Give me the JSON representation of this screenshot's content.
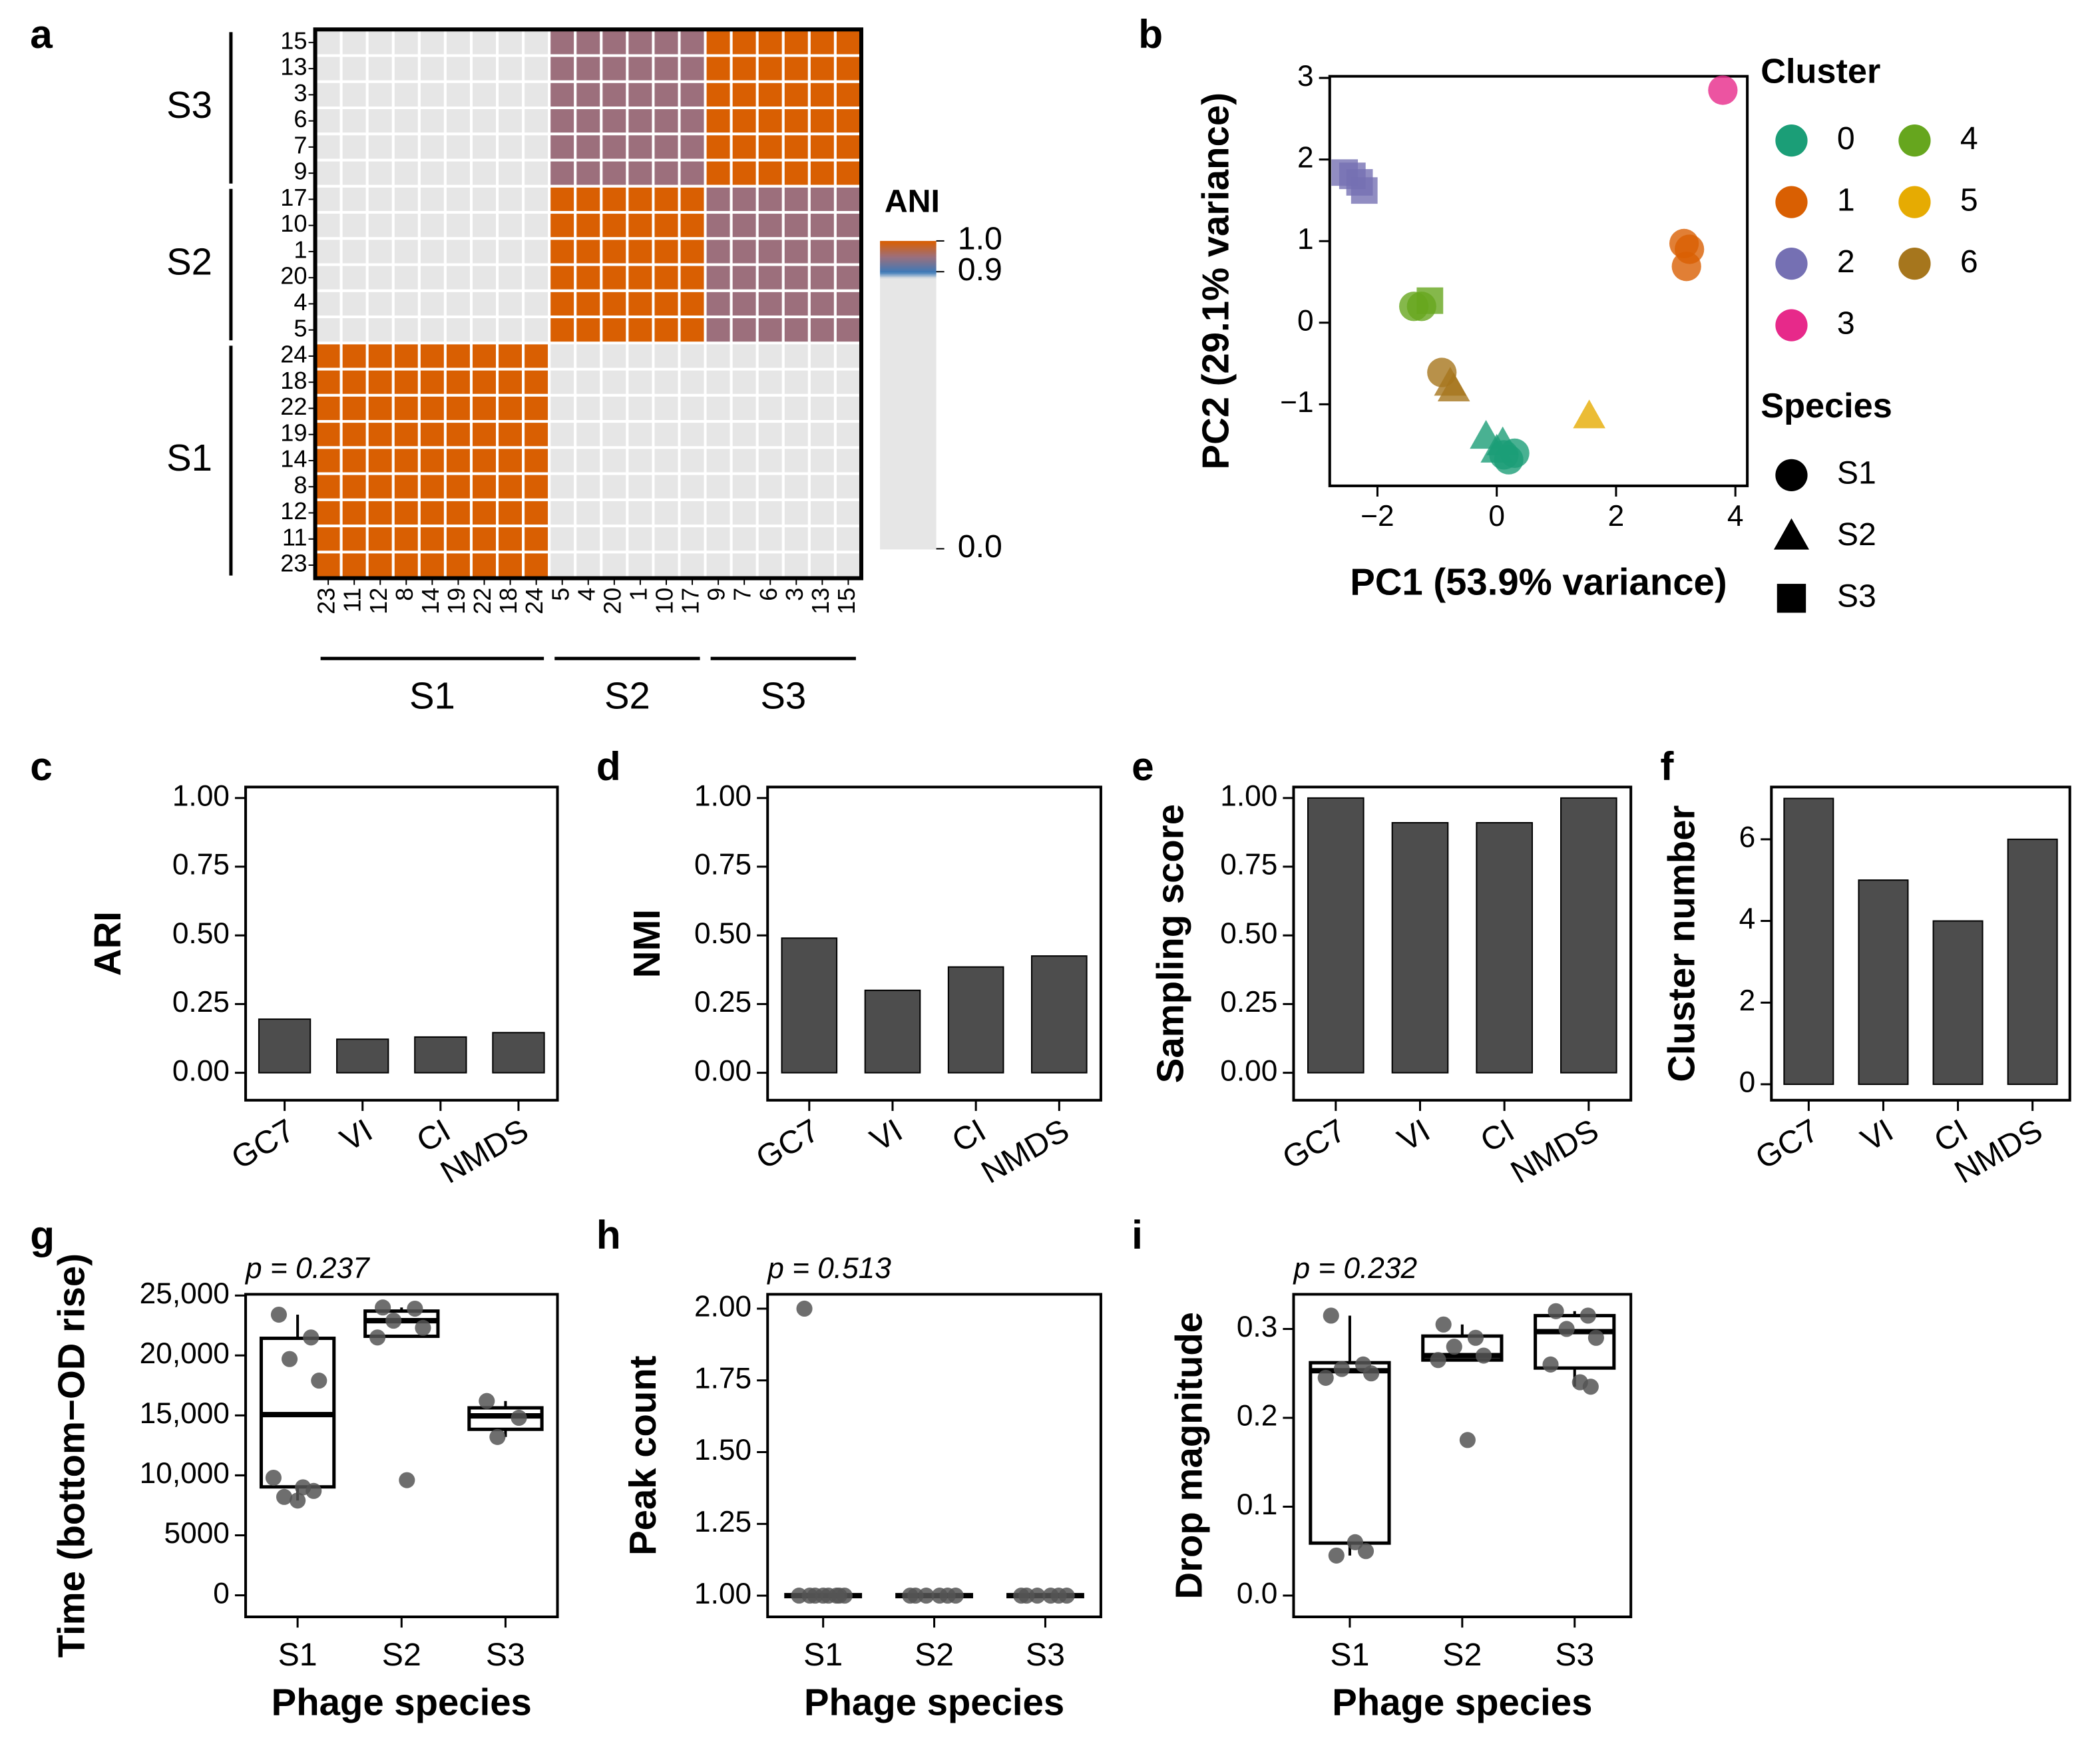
{
  "chart_data": [
    {
      "type": "heatmap",
      "panel": "a",
      "row_groups": [
        {
          "name": "S3",
          "labels": [
            "15",
            "13",
            "3",
            "6",
            "7",
            "9"
          ]
        },
        {
          "name": "S2",
          "labels": [
            "17",
            "10",
            "1",
            "20",
            "4",
            "5"
          ]
        },
        {
          "name": "S1",
          "labels": [
            "24",
            "18",
            "22",
            "19",
            "14",
            "8",
            "12",
            "11",
            "23"
          ]
        }
      ],
      "column_groups": [
        {
          "name": "S1",
          "labels": [
            "23",
            "11",
            "12",
            "8",
            "14",
            "19",
            "22",
            "18",
            "24"
          ]
        },
        {
          "name": "S2",
          "labels": [
            "5",
            "4",
            "20",
            "1",
            "10",
            "17"
          ]
        },
        {
          "name": "S3",
          "labels": [
            "9",
            "7",
            "6",
            "3",
            "13",
            "15"
          ]
        }
      ],
      "values": [
        [
          0,
          0,
          0,
          0,
          0,
          0,
          0,
          0,
          0,
          0.95,
          0.95,
          0.95,
          0.95,
          0.95,
          0.95,
          1,
          1,
          1,
          1,
          1,
          1
        ],
        [
          0,
          0,
          0,
          0,
          0,
          0,
          0,
          0,
          0,
          0.95,
          0.95,
          0.95,
          0.95,
          0.95,
          0.95,
          1,
          1,
          1,
          1,
          1,
          1
        ],
        [
          0,
          0,
          0,
          0,
          0,
          0,
          0,
          0,
          0,
          0.95,
          0.95,
          0.95,
          0.95,
          0.95,
          0.95,
          1,
          1,
          1,
          1,
          1,
          1
        ],
        [
          0,
          0,
          0,
          0,
          0,
          0,
          0,
          0,
          0,
          0.95,
          0.95,
          0.95,
          0.95,
          0.95,
          0.95,
          1,
          1,
          1,
          1,
          1,
          1
        ],
        [
          0,
          0,
          0,
          0,
          0,
          0,
          0,
          0,
          0,
          0.95,
          0.95,
          0.95,
          0.95,
          0.95,
          0.95,
          1,
          1,
          1,
          1,
          1,
          1
        ],
        [
          0,
          0,
          0,
          0,
          0,
          0,
          0,
          0,
          0,
          0.95,
          0.95,
          0.95,
          0.95,
          0.95,
          0.95,
          1,
          1,
          1,
          1,
          1,
          1
        ],
        [
          0,
          0,
          0,
          0,
          0,
          0,
          0,
          0,
          0,
          1,
          1,
          1,
          1,
          1,
          1,
          0.95,
          0.95,
          0.95,
          0.95,
          0.95,
          0.95
        ],
        [
          0,
          0,
          0,
          0,
          0,
          0,
          0,
          0,
          0,
          1,
          1,
          1,
          1,
          1,
          1,
          0.95,
          0.95,
          0.95,
          0.95,
          0.95,
          0.95
        ],
        [
          0,
          0,
          0,
          0,
          0,
          0,
          0,
          0,
          0,
          1,
          1,
          1,
          1,
          1,
          1,
          0.95,
          0.95,
          0.95,
          0.95,
          0.95,
          0.95
        ],
        [
          0,
          0,
          0,
          0,
          0,
          0,
          0,
          0,
          0,
          1,
          1,
          1,
          1,
          1,
          1,
          0.95,
          0.95,
          0.95,
          0.95,
          0.95,
          0.95
        ],
        [
          0,
          0,
          0,
          0,
          0,
          0,
          0,
          0,
          0,
          1,
          1,
          1,
          1,
          1,
          1,
          0.95,
          0.95,
          0.95,
          0.95,
          0.95,
          0.95
        ],
        [
          0,
          0,
          0,
          0,
          0,
          0,
          0,
          0,
          0,
          1,
          1,
          1,
          1,
          1,
          1,
          0.95,
          0.95,
          0.95,
          0.95,
          0.95,
          0.95
        ],
        [
          1,
          1,
          1,
          1,
          1,
          1,
          1,
          1,
          1,
          0,
          0,
          0,
          0,
          0,
          0,
          0,
          0,
          0,
          0,
          0,
          0
        ],
        [
          1,
          1,
          1,
          1,
          1,
          1,
          1,
          1,
          1,
          0,
          0,
          0,
          0,
          0,
          0,
          0,
          0,
          0,
          0,
          0,
          0
        ],
        [
          1,
          1,
          1,
          1,
          1,
          1,
          1,
          1,
          1,
          0,
          0,
          0,
          0,
          0,
          0,
          0,
          0,
          0,
          0,
          0,
          0
        ],
        [
          1,
          1,
          1,
          1,
          1,
          1,
          1,
          1,
          1,
          0,
          0,
          0,
          0,
          0,
          0,
          0,
          0,
          0,
          0,
          0,
          0
        ],
        [
          1,
          1,
          1,
          1,
          1,
          1,
          1,
          1,
          1,
          0,
          0,
          0,
          0,
          0,
          0,
          0,
          0,
          0,
          0,
          0,
          0
        ],
        [
          1,
          1,
          1,
          1,
          1,
          1,
          1,
          1,
          1,
          0,
          0,
          0,
          0,
          0,
          0,
          0,
          0,
          0,
          0,
          0,
          0
        ],
        [
          1,
          1,
          1,
          1,
          1,
          1,
          1,
          1,
          1,
          0,
          0,
          0,
          0,
          0,
          0,
          0,
          0,
          0,
          0,
          0,
          0
        ],
        [
          1,
          1,
          1,
          1,
          1,
          1,
          1,
          1,
          1,
          0,
          0,
          0,
          0,
          0,
          0,
          0,
          0,
          0,
          0,
          0,
          0
        ],
        [
          1,
          1,
          1,
          1,
          1,
          1,
          1,
          1,
          1,
          0,
          0,
          0,
          0,
          0,
          0,
          0,
          0,
          0,
          0,
          0,
          0
        ]
      ],
      "colorbar_title": "ANI",
      "colorbar_lim": [
        0,
        1
      ],
      "colorbar_ticks": [
        {
          "value": 1,
          "label": "1.0"
        },
        {
          "value": 0.9,
          "label": "0.9"
        },
        {
          "value": 0,
          "label": "0.0"
        }
      ],
      "colorscale": [
        [
          0,
          "#e6e6e6"
        ],
        [
          0.88,
          "#e6e6e6"
        ],
        [
          0.9,
          "#3d7ab8"
        ],
        [
          0.95,
          "#9c6f7c"
        ],
        [
          1,
          "#d95f02"
        ]
      ]
    },
    {
      "type": "scatter",
      "panel": "b",
      "xlabel": "PC1 (53.9% variance)",
      "ylabel": "PC2 (29.1% variance)",
      "xlim": [
        -2.8,
        4.2
      ],
      "ylim": [
        -2,
        3.02
      ],
      "xticks": [
        {
          "value": -2,
          "label": "−2"
        },
        0,
        2,
        4
      ],
      "yticks": [
        {
          "value": -1,
          "label": "−1"
        },
        0,
        1,
        2,
        3
      ],
      "legend_cluster_title": "Cluster",
      "legend_species_title": "Species",
      "clusters": [
        {
          "name": "0",
          "color": "#1b9e77"
        },
        {
          "name": "1",
          "color": "#d95f02"
        },
        {
          "name": "2",
          "color": "#7570b3"
        },
        {
          "name": "3",
          "color": "#e7298a"
        },
        {
          "name": "4",
          "color": "#66a61e"
        },
        {
          "name": "5",
          "color": "#e6ab02"
        },
        {
          "name": "6",
          "color": "#a6761d"
        }
      ],
      "species": [
        {
          "name": "S1",
          "marker": "circle"
        },
        {
          "name": "S2",
          "marker": "triangle"
        },
        {
          "name": "S3",
          "marker": "square"
        }
      ],
      "points": {
        "x": [
          3.79,
          3.14,
          3.23,
          3.18,
          -2.55,
          -2.42,
          -2.3,
          -2.22,
          -1.39,
          -1.26,
          -1.12,
          -0.92,
          -0.78,
          -0.72,
          1.55,
          -0.18,
          0.0,
          0.1,
          0.3,
          0.2,
          0.12
        ],
        "y": [
          2.85,
          0.97,
          0.9,
          0.69,
          1.84,
          1.8,
          1.72,
          1.62,
          0.2,
          0.2,
          0.27,
          -0.61,
          -0.75,
          -0.82,
          -1.15,
          -1.4,
          -1.57,
          -1.48,
          -1.6,
          -1.68,
          -1.62
        ],
        "cluster": [
          "3",
          "1",
          "1",
          "1",
          "2",
          "2",
          "2",
          "2",
          "4",
          "4",
          "4",
          "6",
          "6",
          "6",
          "5",
          "0",
          "0",
          "0",
          "0",
          "0",
          "0"
        ],
        "species": [
          "S1",
          "S1",
          "S1",
          "S1",
          "S3",
          "S3",
          "S3",
          "S3",
          "S1",
          "S1",
          "S3",
          "S1",
          "S2",
          "S2",
          "S2",
          "S2",
          "S2",
          "S2",
          "S1",
          "S1",
          "S1"
        ]
      }
    },
    {
      "type": "bar",
      "panel": "c",
      "ylabel": "ARI",
      "categories": [
        "GC7",
        "VI",
        "CI",
        "NMDS"
      ],
      "values": [
        0.195,
        0.122,
        0.13,
        0.146
      ],
      "color": "#4d4d4d",
      "ylim": [
        -0.1,
        1.04
      ],
      "yticks": [
        {
          "value": 0,
          "label": "0.00"
        },
        {
          "value": 0.25,
          "label": "0.25"
        },
        {
          "value": 0.5,
          "label": "0.50"
        },
        {
          "value": 0.75,
          "label": "0.75"
        },
        {
          "value": 1,
          "label": "1.00"
        }
      ]
    },
    {
      "type": "bar",
      "panel": "d",
      "ylabel": "NMI",
      "categories": [
        "GC7",
        "VI",
        "CI",
        "NMDS"
      ],
      "values": [
        0.49,
        0.3,
        0.385,
        0.425
      ],
      "color": "#4d4d4d",
      "ylim": [
        -0.1,
        1.04
      ],
      "yticks": [
        {
          "value": 0,
          "label": "0.00"
        },
        {
          "value": 0.25,
          "label": "0.25"
        },
        {
          "value": 0.5,
          "label": "0.50"
        },
        {
          "value": 0.75,
          "label": "0.75"
        },
        {
          "value": 1,
          "label": "1.00"
        }
      ]
    },
    {
      "type": "bar",
      "panel": "e",
      "ylabel": "Sampling score",
      "categories": [
        "GC7",
        "VI",
        "CI",
        "NMDS"
      ],
      "values": [
        1,
        0.91,
        0.91,
        1
      ],
      "color": "#4d4d4d",
      "ylim": [
        -0.1,
        1.04
      ],
      "yticks": [
        {
          "value": 0,
          "label": "0.00"
        },
        {
          "value": 0.25,
          "label": "0.25"
        },
        {
          "value": 0.5,
          "label": "0.50"
        },
        {
          "value": 0.75,
          "label": "0.75"
        },
        {
          "value": 1,
          "label": "1.00"
        }
      ]
    },
    {
      "type": "bar",
      "panel": "f",
      "ylabel": "Cluster number",
      "categories": [
        "GC7",
        "VI",
        "CI",
        "NMDS"
      ],
      "values": [
        7,
        5,
        4,
        6
      ],
      "color": "#4d4d4d",
      "ylim": [
        -0.39,
        7.28
      ],
      "yticks": [
        0,
        2,
        4,
        6
      ]
    },
    {
      "type": "box",
      "panel": "g",
      "annotation": "p = 0.237",
      "xlabel": "Phage species",
      "ylabel": "Time (bottom−OD rise)",
      "categories": [
        "S1",
        "S2",
        "S3"
      ],
      "point_color": "#555555",
      "boxes": [
        {
          "whisker_low": 7900,
          "q1": 9040,
          "median": 15070,
          "q3": 21430,
          "whisker_high": 23400,
          "points": [
            23400,
            21500,
            19700,
            17900,
            9800,
            9000,
            8700,
            8200,
            7900
          ]
        },
        {
          "whisker_low": 21500,
          "q1": 21600,
          "median": 22900,
          "q3": 23700,
          "whisker_high": 24000,
          "points": [
            24000,
            23900,
            22900,
            22300,
            21500,
            9600
          ]
        },
        {
          "whisker_low": 13200,
          "q1": 13840,
          "median": 14960,
          "q3": 15630,
          "whisker_high": 16200,
          "points": [
            16200,
            14800,
            13200
          ]
        }
      ],
      "ylim": [
        -1800,
        25100
      ],
      "yticks": [
        0,
        5000,
        {
          "value": 10000,
          "label": "10,000"
        },
        {
          "value": 15000,
          "label": "15,000"
        },
        {
          "value": 20000,
          "label": "20,000"
        },
        {
          "value": 25000,
          "label": "25,000"
        }
      ]
    },
    {
      "type": "box",
      "panel": "h",
      "annotation": "p = 0.513",
      "xlabel": "Phage species",
      "ylabel": "Peak count",
      "categories": [
        "S1",
        "S2",
        "S3"
      ],
      "point_color": "#555555",
      "boxes": [
        {
          "whisker_low": 1,
          "q1": 1,
          "median": 1,
          "q3": 1,
          "whisker_high": 1,
          "points": [
            2,
            1,
            1,
            1,
            1,
            1,
            1,
            1,
            1
          ]
        },
        {
          "whisker_low": 1,
          "q1": 1,
          "median": 1,
          "q3": 1,
          "whisker_high": 1,
          "points": [
            1,
            1,
            1,
            1,
            1,
            1
          ]
        },
        {
          "whisker_low": 1,
          "q1": 1,
          "median": 1,
          "q3": 1,
          "whisker_high": 1,
          "points": [
            1,
            1,
            1,
            1,
            1,
            1
          ]
        }
      ],
      "ylim": [
        0.926,
        2.05
      ],
      "yticks": [
        {
          "value": 1,
          "label": "1.00"
        },
        {
          "value": 1.25,
          "label": "1.25"
        },
        {
          "value": 1.5,
          "label": "1.50"
        },
        {
          "value": 1.75,
          "label": "1.75"
        },
        {
          "value": 2,
          "label": "2.00"
        }
      ]
    },
    {
      "type": "box",
      "panel": "i",
      "annotation": "p = 0.232",
      "xlabel": "Phage species",
      "ylabel": "Drop magnitude",
      "categories": [
        "S1",
        "S2",
        "S3"
      ],
      "point_color": "#555555",
      "boxes": [
        {
          "whisker_low": 0.045,
          "q1": 0.059,
          "median": 0.253,
          "q3": 0.262,
          "whisker_high": 0.315,
          "points": [
            0.315,
            0.26,
            0.255,
            0.25,
            0.245,
            0.06,
            0.05,
            0.045
          ]
        },
        {
          "whisker_low": 0.265,
          "q1": 0.265,
          "median": 0.27,
          "q3": 0.292,
          "whisker_high": 0.305,
          "points": [
            0.305,
            0.29,
            0.28,
            0.27,
            0.265,
            0.175
          ]
        },
        {
          "whisker_low": 0.235,
          "q1": 0.256,
          "median": 0.297,
          "q3": 0.315,
          "whisker_high": 0.32,
          "points": [
            0.32,
            0.315,
            0.3,
            0.29,
            0.26,
            0.24,
            0.235
          ]
        }
      ],
      "ylim": [
        -0.024,
        0.339
      ],
      "yticks": [
        {
          "value": 0,
          "label": "0.0"
        },
        {
          "value": 0.1,
          "label": "0.1"
        },
        {
          "value": 0.2,
          "label": "0.2"
        },
        {
          "value": 0.3,
          "label": "0.3"
        }
      ]
    }
  ]
}
